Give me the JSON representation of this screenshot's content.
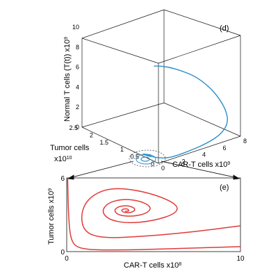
{
  "chart_data": [
    {
      "panel": "(d)",
      "type": "line",
      "dimensions": 3,
      "xlabel": "CAR-T cells",
      "xlabel_exp": "x10",
      "xlabel_pow": "9",
      "ylabel_prefix": "Tumor cells",
      "ylabel_exp": "x10",
      "ylabel_pow": "10",
      "zlabel": "Normal T cells (T(t)) x10",
      "zlabel_pow": "9",
      "x_ticks": [
        "0",
        "2",
        "4",
        "6",
        "8"
      ],
      "y_ticks": [
        "0",
        "0.5",
        "1",
        "1.5",
        "2",
        "2.5"
      ],
      "z_ticks": [
        "0",
        "2",
        "4",
        "6",
        "8",
        "10"
      ],
      "xlim": [
        0,
        8
      ],
      "ylim": [
        0,
        2.5
      ],
      "zlim": [
        0,
        10
      ],
      "line_color": "#2a8fc9",
      "series": [
        {
          "points": [
            {
              "x": 0.0,
              "y": 0.15,
              "z": 9.5
            },
            {
              "x": 0.6,
              "y": 0.15,
              "z": 9.3
            },
            {
              "x": 1.5,
              "y": 0.12,
              "z": 8.9
            },
            {
              "x": 2.6,
              "y": 0.1,
              "z": 8.2
            },
            {
              "x": 3.8,
              "y": 0.08,
              "z": 7.3
            },
            {
              "x": 5.0,
              "y": 0.06,
              "z": 6.0
            },
            {
              "x": 6.0,
              "y": 0.05,
              "z": 4.5
            },
            {
              "x": 6.7,
              "y": 0.04,
              "z": 3.0
            },
            {
              "x": 6.9,
              "y": 0.03,
              "z": 1.7
            },
            {
              "x": 6.2,
              "y": 0.02,
              "z": 0.8
            },
            {
              "x": 4.8,
              "y": 0.02,
              "z": 0.35
            },
            {
              "x": 3.2,
              "y": 0.03,
              "z": 0.15
            },
            {
              "x": 1.9,
              "y": 0.05,
              "z": 0.05
            },
            {
              "x": 1.1,
              "y": 0.1,
              "z": 0.0
            },
            {
              "x": 0.6,
              "y": 0.25,
              "z": 0.0
            },
            {
              "x": 0.3,
              "y": 0.45,
              "z": 0.0
            },
            {
              "x": 0.2,
              "y": 0.6,
              "z": 0.0
            },
            {
              "x": 0.35,
              "y": 0.55,
              "z": 0.0
            },
            {
              "x": 0.5,
              "y": 0.45,
              "z": 0.0
            },
            {
              "x": 0.45,
              "y": 0.38,
              "z": 0.0
            },
            {
              "x": 0.35,
              "y": 0.4,
              "z": 0.0
            }
          ]
        }
      ]
    },
    {
      "panel": "(e)",
      "type": "line",
      "xlabel": "CAR-T cells x10",
      "xlabel_pow": "8",
      "ylabel": "Tumor cells x10",
      "ylabel_pow": "9",
      "x_ticks": [
        "0",
        "10"
      ],
      "y_ticks": [
        "0",
        "6"
      ],
      "xlim": [
        0,
        10
      ],
      "ylim": [
        0,
        6
      ],
      "line_color": "#e03a3a",
      "series": [
        {
          "points": [
            {
              "x": 0.05,
              "y": 5.95
            },
            {
              "x": 0.1,
              "y": 3.0
            },
            {
              "x": 0.2,
              "y": 1.2
            },
            {
              "x": 0.5,
              "y": 0.35
            },
            {
              "x": 1.5,
              "y": 0.12
            },
            {
              "x": 4.0,
              "y": 0.15
            },
            {
              "x": 7.0,
              "y": 0.28
            },
            {
              "x": 10.0,
              "y": 0.4
            }
          ]
        },
        {
          "points": [
            {
              "x": 10.0,
              "y": 2.1
            },
            {
              "x": 7.0,
              "y": 1.55
            },
            {
              "x": 4.0,
              "y": 1.2
            },
            {
              "x": 2.0,
              "y": 1.1
            },
            {
              "x": 1.0,
              "y": 1.6
            },
            {
              "x": 0.8,
              "y": 3.0
            },
            {
              "x": 1.2,
              "y": 4.3
            },
            {
              "x": 2.2,
              "y": 5.1
            },
            {
              "x": 3.5,
              "y": 5.15
            },
            {
              "x": 5.2,
              "y": 4.6
            },
            {
              "x": 6.4,
              "y": 3.8
            },
            {
              "x": 6.3,
              "y": 3.1
            },
            {
              "x": 5.0,
              "y": 2.5
            },
            {
              "x": 3.5,
              "y": 2.3
            },
            {
              "x": 2.4,
              "y": 2.6
            },
            {
              "x": 2.0,
              "y": 3.3
            },
            {
              "x": 2.4,
              "y": 4.0
            },
            {
              "x": 3.3,
              "y": 4.3
            },
            {
              "x": 4.3,
              "y": 4.1
            },
            {
              "x": 4.9,
              "y": 3.6
            },
            {
              "x": 4.6,
              "y": 3.1
            },
            {
              "x": 3.8,
              "y": 2.85
            },
            {
              "x": 3.0,
              "y": 2.95
            },
            {
              "x": 2.7,
              "y": 3.35
            },
            {
              "x": 3.0,
              "y": 3.7
            },
            {
              "x": 3.6,
              "y": 3.75
            },
            {
              "x": 4.0,
              "y": 3.45
            },
            {
              "x": 3.7,
              "y": 3.15
            },
            {
              "x": 3.2,
              "y": 3.2
            },
            {
              "x": 3.15,
              "y": 3.45
            },
            {
              "x": 3.5,
              "y": 3.5
            },
            {
              "x": 3.6,
              "y": 3.3
            },
            {
              "x": 3.35,
              "y": 3.28
            }
          ]
        }
      ]
    }
  ]
}
